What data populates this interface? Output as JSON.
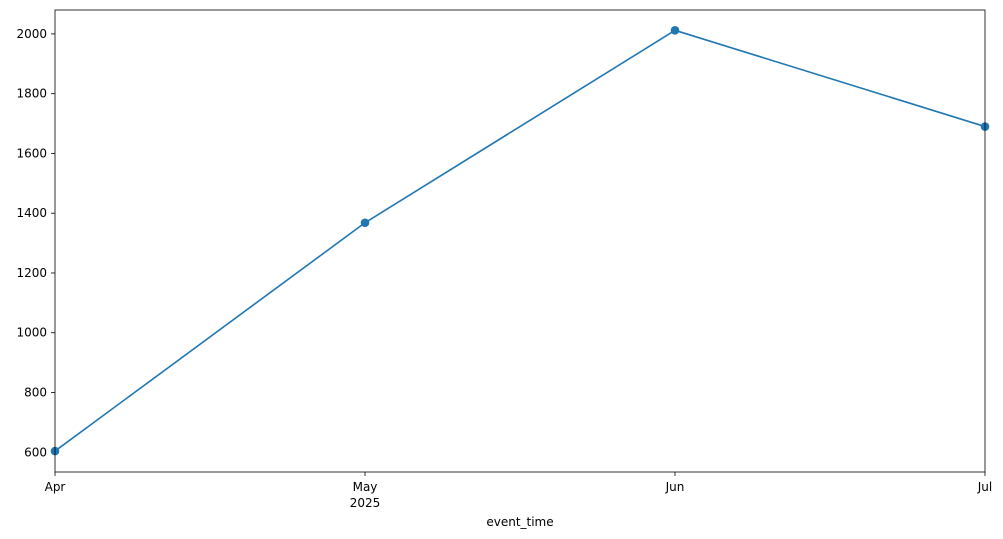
{
  "chart_data": {
    "type": "line",
    "x": [
      "2025-04",
      "2025-05",
      "2025-06",
      "2025-07"
    ],
    "x_tick_labels": [
      "Apr",
      "May",
      "Jun",
      "Jul"
    ],
    "x_tick_sublabels": [
      "",
      "2025",
      "",
      ""
    ],
    "series": [
      {
        "values": [
          604,
          1368,
          2012,
          1690
        ],
        "color": "#1f77b4",
        "marker": "circle"
      }
    ],
    "xlabel": "event_time",
    "ylabel": "",
    "ylim": [
      534,
      2080
    ],
    "y_ticks": [
      600,
      800,
      1000,
      1200,
      1400,
      1600,
      1800,
      2000
    ],
    "grid": false,
    "legend": "none"
  }
}
